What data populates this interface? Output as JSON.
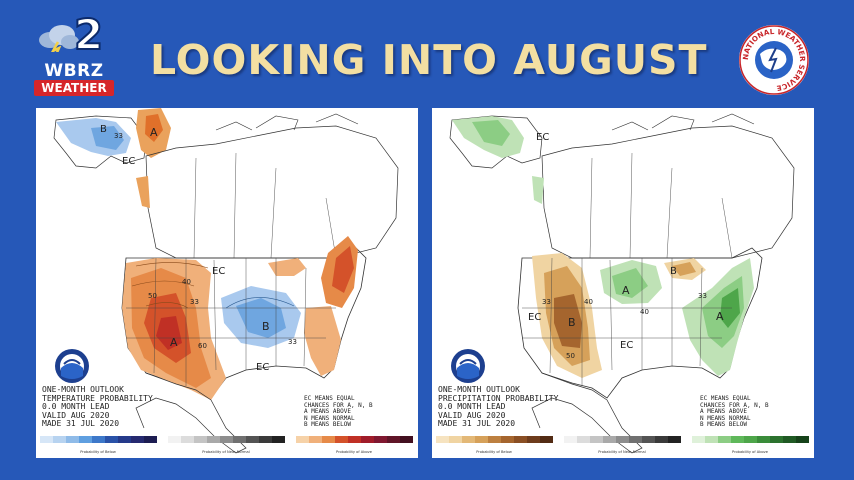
{
  "header": {
    "title": "LOOKING INTO AUGUST",
    "station_number": "2",
    "station_call": "WBRZ",
    "station_tag": "WEATHER",
    "nws_ring_text": "NATIONAL WEATHER SERVICE"
  },
  "colors": {
    "background": "#2658b8",
    "title": "#f3dfa2",
    "above": "#e0702a",
    "below": "#5f9fe0",
    "wet": "#5fb85a",
    "dry": "#c7853e"
  },
  "temperature_panel": {
    "caption": [
      "ONE-MONTH OUTLOOK",
      "TEMPERATURE PROBABILITY",
      "0.0 MONTH LEAD",
      "VALID AUG 2020",
      "MADE 31 JUL 2020"
    ],
    "legend_note": [
      "EC MEANS EQUAL",
      "CHANCES FOR A, N, B",
      "A MEANS ABOVE",
      "N MEANS NORMAL",
      "B MEANS BELOW"
    ],
    "map_labels": {
      "A_west": "A",
      "A_alaska": "A",
      "B_alaska": "B",
      "B_central": "B",
      "EC_alaska": "EC",
      "EC_central": "EC",
      "EC_south": "EC",
      "c33a": "33",
      "c33b": "33",
      "c33c": "33",
      "c40": "40",
      "c50": "50",
      "c60": "60"
    },
    "colorbar_labels": {
      "below": "Probability of Below",
      "normal": "Probability of Near-Normal",
      "above": "Probability of Above"
    }
  },
  "precipitation_panel": {
    "caption": [
      "ONE-MONTH OUTLOOK",
      "PRECIPITATION PROBABILITY",
      "0.0 MONTH LEAD",
      "VALID AUG 2020",
      "MADE 31 JUL 2020"
    ],
    "legend_note": [
      "EC MEANS EQUAL",
      "CHANCES FOR A, N, B",
      "A MEANS ABOVE",
      "N MEANS NORMAL",
      "B MEANS BELOW"
    ],
    "map_labels": {
      "EC_alaska": "EC",
      "EC_west": "EC",
      "EC_south": "EC",
      "A_central": "A",
      "A_east": "A",
      "B_west": "B",
      "B_lakes": "B",
      "c33a": "33",
      "c33b": "33",
      "c40a": "40",
      "c40b": "40",
      "c50": "50"
    },
    "colorbar_labels": {
      "below": "Probability of Below",
      "normal": "Probability of Near-Normal",
      "above": "Probability of Above"
    }
  }
}
